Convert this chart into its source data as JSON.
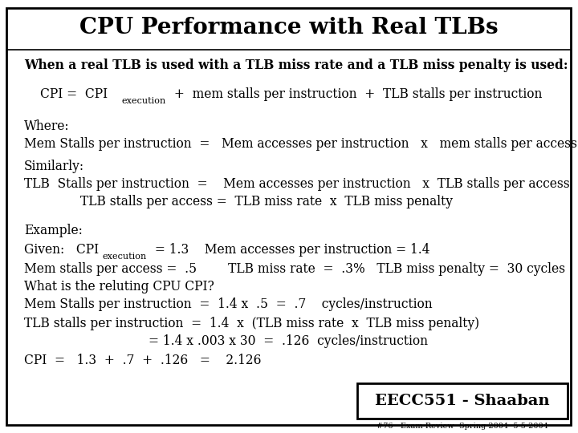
{
  "title": "CPU Performance with Real TLBs",
  "bg_color": "#ffffff",
  "title_fontsize": 20,
  "body_fontsize": 11.2,
  "footer_label": "EECC551 - Shaaban",
  "footer_sub": "#76  Exam Review  Spring 2004  5-5-2004"
}
